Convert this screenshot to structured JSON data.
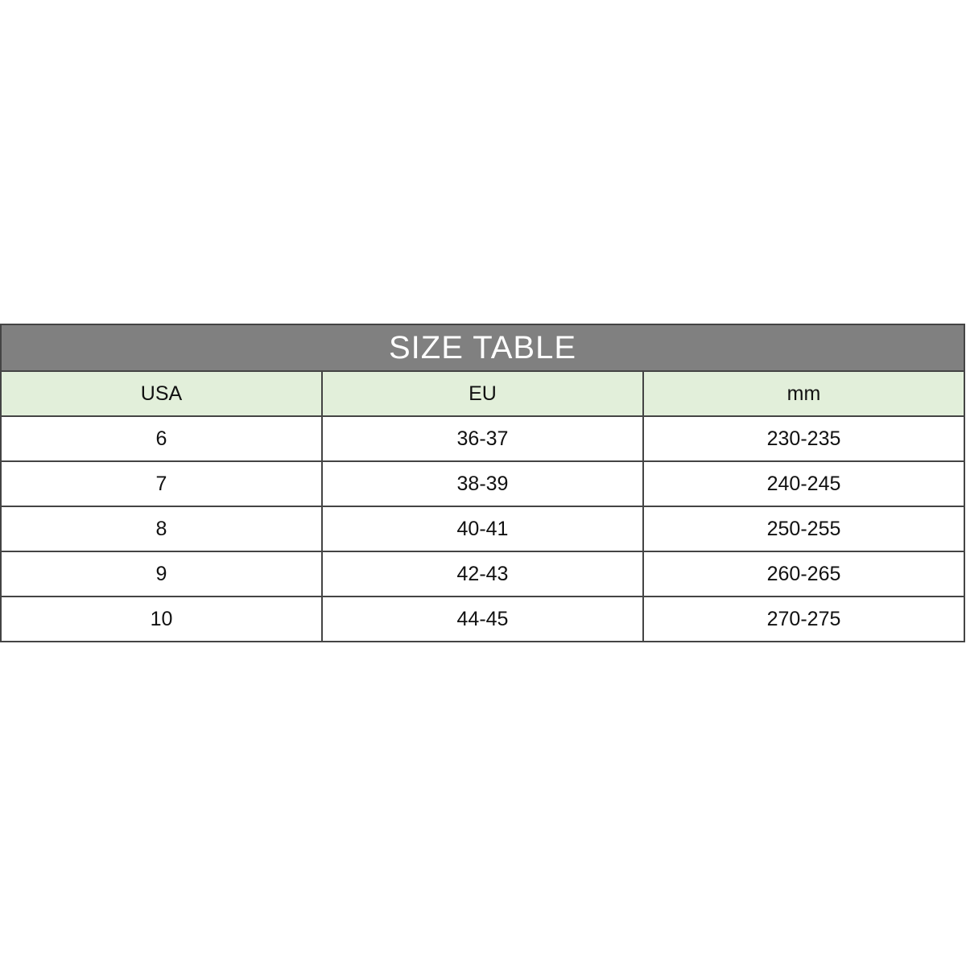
{
  "title": "SIZE TABLE",
  "colors": {
    "title_bg": "#808080",
    "header_bg": "#e2efda"
  },
  "headers": [
    "USA",
    "EU",
    "mm"
  ],
  "rows": [
    [
      "6",
      "36-37",
      "230-235"
    ],
    [
      "7",
      "38-39",
      "240-245"
    ],
    [
      "8",
      "40-41",
      "250-255"
    ],
    [
      "9",
      "42-43",
      "260-265"
    ],
    [
      "10",
      "44-45",
      "270-275"
    ]
  ]
}
